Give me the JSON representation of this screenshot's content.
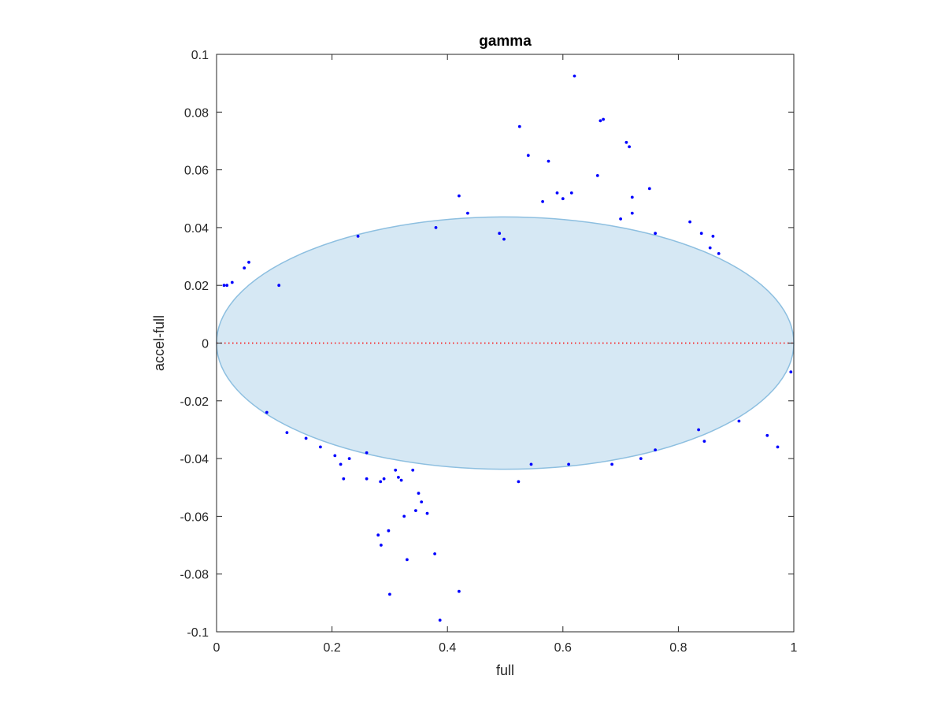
{
  "chart_data": {
    "type": "scatter",
    "title": "gamma",
    "xlabel": "full",
    "ylabel": "accel-full",
    "xlim": [
      0,
      1
    ],
    "ylim": [
      -0.1,
      0.1
    ],
    "x_ticks": [
      0,
      0.2,
      0.4,
      0.6,
      0.8,
      1
    ],
    "x_tick_labels": [
      "0",
      "0.2",
      "0.4",
      "0.6",
      "0.8",
      "1"
    ],
    "y_ticks": [
      -0.1,
      -0.08,
      -0.06,
      -0.04,
      -0.02,
      0,
      0.02,
      0.04,
      0.06,
      0.08,
      0.1
    ],
    "y_tick_labels": [
      "-0.1",
      "-0.08",
      "-0.06",
      "-0.04",
      "-0.02",
      "0",
      "0.02",
      "0.04",
      "0.06",
      "0.08",
      "0.1"
    ],
    "grid": false,
    "colors": {
      "points": "#0000ff",
      "reference_line": "#ff0000",
      "ellipse_fill": "#d6e8f4",
      "ellipse_stroke": "#8dbfe0",
      "axes": "#262626"
    },
    "reference_line": {
      "y": 0,
      "style": "dotted"
    },
    "ellipse": {
      "center_x": 0.5,
      "center_y": 0.0,
      "radius_x": 0.5,
      "radius_y": 0.0437
    },
    "series": [
      {
        "x": [
          0.62,
          0.525,
          0.665,
          0.67,
          0.71,
          0.715,
          0.66,
          0.54,
          0.575,
          0.59,
          0.6,
          0.615,
          0.42,
          0.565,
          0.7,
          0.72,
          0.75,
          0.72,
          0.76,
          0.82,
          0.84,
          0.86,
          0.87,
          0.855,
          0.435,
          0.38,
          0.245,
          0.49,
          0.498,
          0.048,
          0.056,
          0.027,
          0.013,
          0.018,
          0.108,
          0.325,
          0.298,
          0.33,
          0.345,
          0.3,
          0.285,
          0.28,
          0.32,
          0.315,
          0.29,
          0.387,
          0.42,
          0.378,
          0.35,
          0.355,
          0.365,
          0.523,
          0.545,
          0.61,
          0.685,
          0.735,
          0.76,
          0.845,
          0.835,
          0.905,
          0.954,
          0.972,
          0.995,
          0.23,
          0.205,
          0.215,
          0.18,
          0.155,
          0.26,
          0.26,
          0.087,
          0.122,
          0.284,
          0.31,
          0.34,
          0.22
        ],
        "y": [
          0.0925,
          0.075,
          0.077,
          0.0775,
          0.0695,
          0.068,
          0.058,
          0.065,
          0.063,
          0.052,
          0.05,
          0.052,
          0.051,
          0.049,
          0.043,
          0.0505,
          0.0535,
          0.045,
          0.038,
          0.042,
          0.038,
          0.037,
          0.031,
          0.033,
          0.045,
          0.04,
          0.037,
          0.038,
          0.036,
          0.026,
          0.028,
          0.021,
          0.02,
          0.02,
          0.02,
          -0.06,
          -0.065,
          -0.075,
          -0.058,
          -0.087,
          -0.07,
          -0.0665,
          -0.0475,
          -0.0465,
          -0.047,
          -0.096,
          -0.086,
          -0.073,
          -0.052,
          -0.055,
          -0.059,
          -0.048,
          -0.042,
          -0.042,
          -0.042,
          -0.04,
          -0.037,
          -0.034,
          -0.03,
          -0.027,
          -0.032,
          -0.036,
          -0.01,
          -0.04,
          -0.039,
          -0.042,
          -0.036,
          -0.033,
          -0.038,
          -0.047,
          -0.024,
          -0.031,
          -0.048,
          -0.044,
          -0.044,
          -0.047
        ]
      }
    ]
  }
}
